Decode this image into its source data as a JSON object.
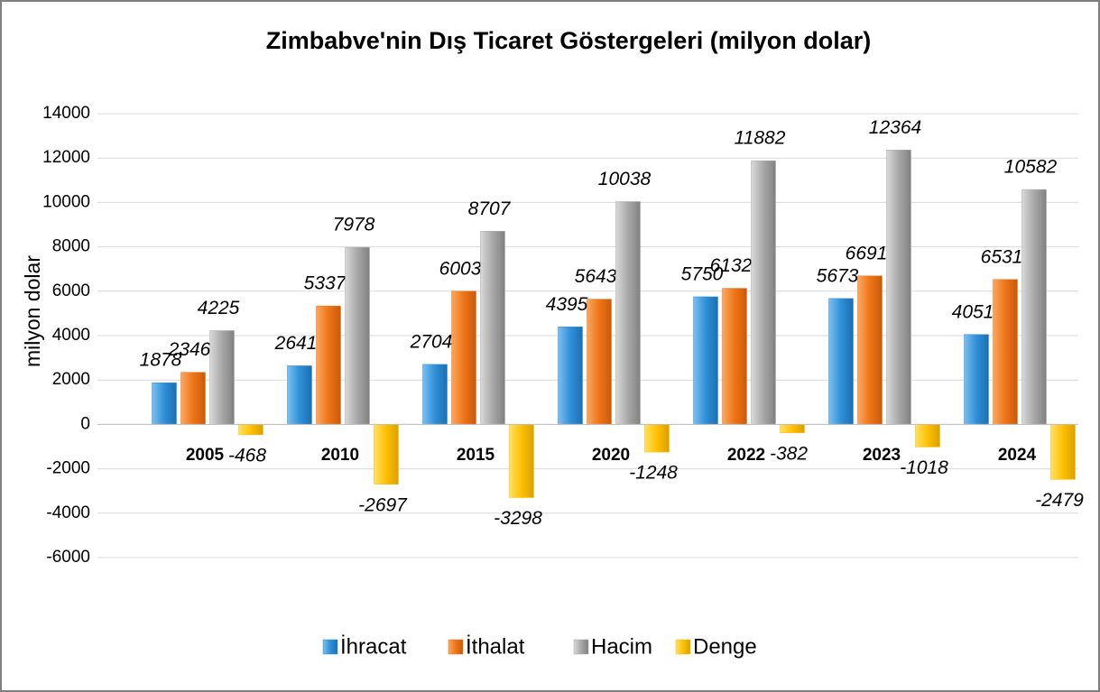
{
  "chart_data": {
    "type": "bar",
    "title": "Zimbabve'nin Dış Ticaret Göstergeleri (milyon dolar)",
    "y_label": "milyon dolar",
    "categories": [
      "2005",
      "2010",
      "2015",
      "2020",
      "2022",
      "2023",
      "2024"
    ],
    "series": [
      {
        "name": "İhracat",
        "color": "#2f8fd8",
        "values": [
          1878,
          2641,
          2704,
          4395,
          5750,
          5673,
          4051
        ]
      },
      {
        "name": "İthalat",
        "color": "#ef7417",
        "values": [
          2346,
          5337,
          6003,
          5643,
          6132,
          6691,
          6531
        ]
      },
      {
        "name": "Hacim",
        "color": "#a8a8a8",
        "values": [
          4225,
          7978,
          8707,
          10038,
          11882,
          12364,
          10582
        ]
      },
      {
        "name": "Denge",
        "color": "#ffc000",
        "values": [
          -468,
          -2697,
          -3298,
          -1248,
          -382,
          -1018,
          -2479
        ]
      }
    ],
    "ylim": [
      -6000,
      14000
    ],
    "yticks": [
      -6000,
      -4000,
      -2000,
      0,
      2000,
      4000,
      6000,
      8000,
      10000,
      12000,
      14000
    ],
    "grid": true,
    "legend": "bottom"
  }
}
